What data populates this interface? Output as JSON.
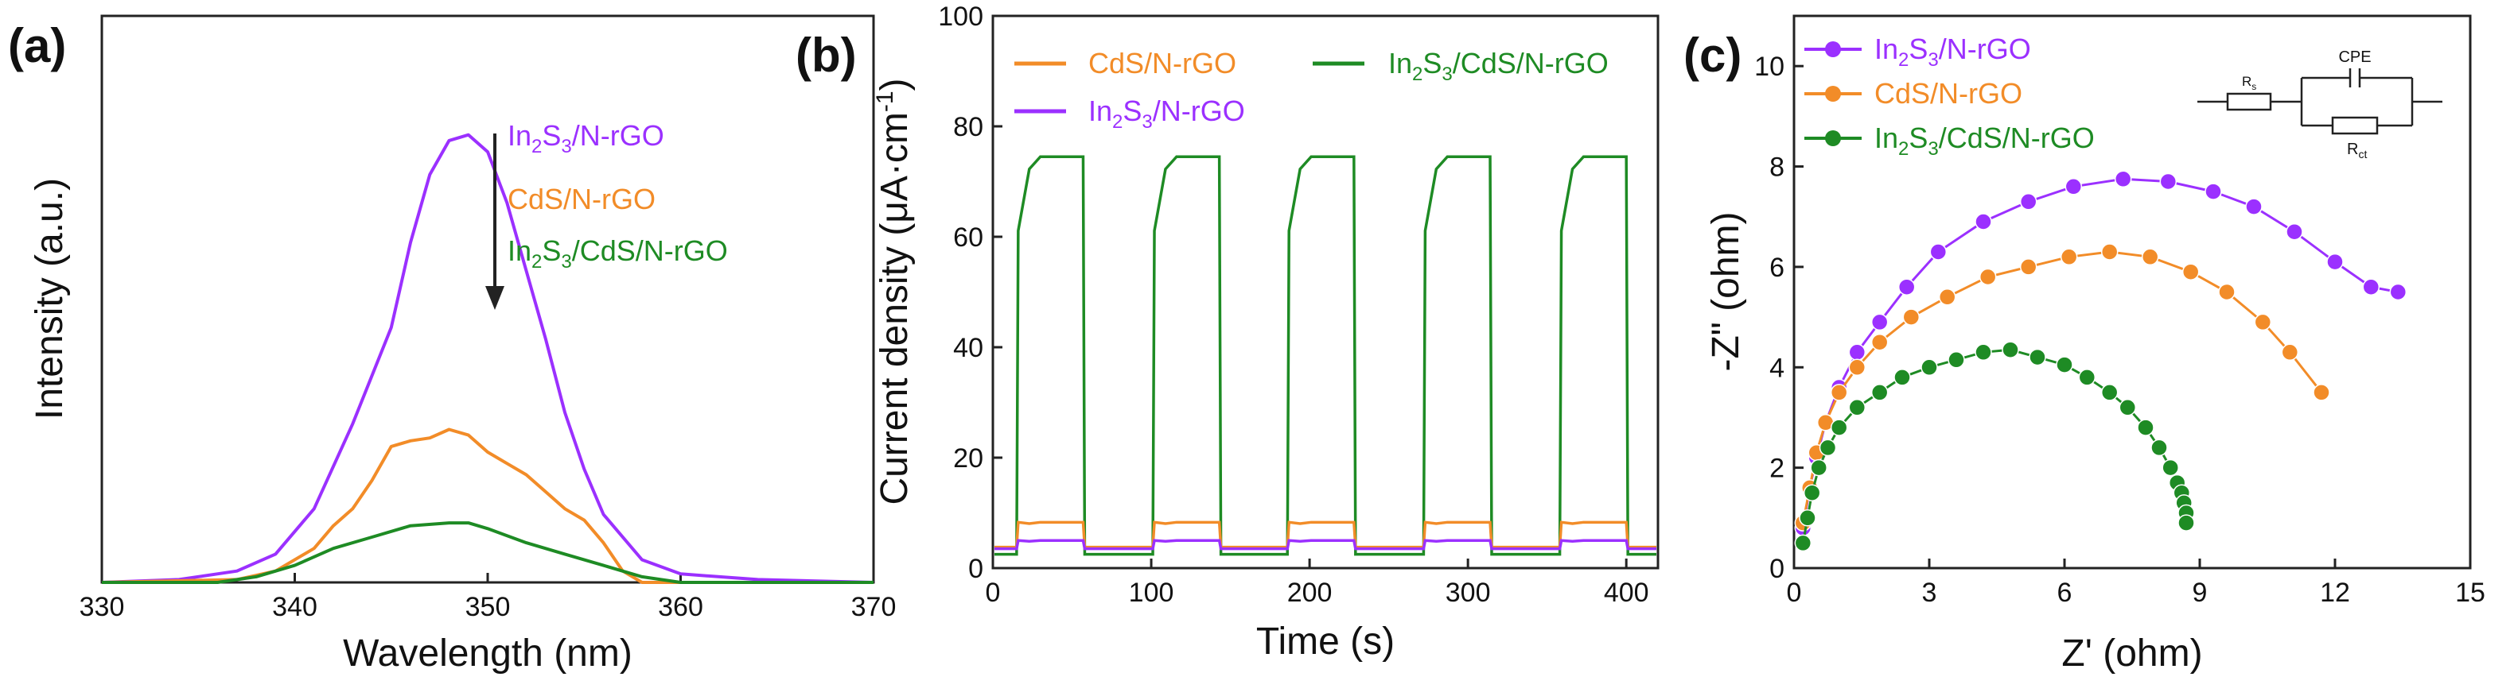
{
  "colors": {
    "purple": "#9b30ff",
    "orange": "#f28c28",
    "green": "#1e8b24",
    "axis": "#222222"
  },
  "chart_data": [
    {
      "id": "a",
      "panel_label": "(a)",
      "type": "line",
      "title": "",
      "xlabel": "Wavelength (nm)",
      "ylabel": "Intensity (a.u.)",
      "xlim": [
        330,
        370
      ],
      "ylim": [
        0,
        100
      ],
      "xticks": [
        "330",
        "340",
        "350",
        "360",
        "370"
      ],
      "yticks": [],
      "legend_position": "top-right, with downward arrow",
      "series": [
        {
          "name": "In2S3/N-rGO",
          "label_parts": [
            "In",
            "2",
            "S",
            "3",
            "/N-rGO"
          ],
          "color": "#9b30ff",
          "x": [
            330,
            334,
            337,
            339,
            341,
            343,
            345,
            346,
            347,
            348,
            349,
            350,
            351,
            352,
            353,
            354,
            355,
            356,
            358,
            360,
            364,
            370
          ],
          "y": [
            0,
            0.5,
            2,
            5,
            13,
            28,
            45,
            60,
            72,
            78,
            79,
            76,
            67,
            55,
            43,
            30,
            20,
            12,
            4,
            1.5,
            0.5,
            0
          ]
        },
        {
          "name": "CdS/N-rGO",
          "label_parts": [
            "CdS/N-rGO"
          ],
          "color": "#f28c28",
          "x": [
            330,
            337,
            339,
            341,
            342,
            343,
            344,
            345,
            346,
            347,
            348,
            349,
            350,
            351,
            352,
            353,
            354,
            355,
            356,
            357,
            358,
            370
          ],
          "y": [
            0,
            0.5,
            2,
            6,
            10,
            13,
            18,
            24,
            25,
            25.5,
            27,
            26,
            23,
            21,
            19,
            16,
            13,
            11,
            7,
            2,
            0,
            0
          ]
        },
        {
          "name": "In2S3/CdS/N-rGO",
          "label_parts": [
            "In",
            "2",
            "S",
            "3",
            "/CdS/N-rGO"
          ],
          "color": "#1e8b24",
          "x": [
            330,
            336,
            338,
            340,
            342,
            344,
            346,
            348,
            349,
            350,
            352,
            354,
            356,
            358,
            360,
            370
          ],
          "y": [
            0,
            0,
            1,
            3,
            6,
            8,
            10,
            10.5,
            10.5,
            9.5,
            7,
            5,
            3,
            1,
            0,
            0
          ]
        }
      ]
    },
    {
      "id": "b",
      "panel_label": "(b)",
      "type": "line",
      "title": "",
      "xlabel": "Time (s)",
      "ylabel_parts": [
        "Current density (μA·cm",
        "-1",
        ")"
      ],
      "xlim": [
        0,
        420
      ],
      "ylim": [
        0,
        100
      ],
      "xticks": [
        "0",
        "100",
        "200",
        "300",
        "400"
      ],
      "yticks": [
        "0",
        "20",
        "40",
        "60",
        "80",
        "100"
      ],
      "on_periods": [
        [
          15,
          58
        ],
        [
          101,
          144
        ],
        [
          186,
          229
        ],
        [
          272,
          315
        ],
        [
          358,
          401
        ]
      ],
      "legend_position": "top",
      "series": [
        {
          "name": "In2S3/N-rGO",
          "label_parts": [
            "In",
            "2",
            "S",
            "3",
            "/N-rGO"
          ],
          "color": "#9b30ff",
          "off_value": 3.5,
          "on_value": 5
        },
        {
          "name": "CdS/N-rGO",
          "label_parts": [
            "CdS/N-rGO"
          ],
          "color": "#f28c28",
          "off_value": 3.8,
          "on_value": 8.3
        },
        {
          "name": "In2S3/CdS/N-rGO",
          "label_parts": [
            "In",
            "2",
            "S",
            "3",
            "/CdS/N-rGO"
          ],
          "color": "#1e8b24",
          "off_value": 2.5,
          "on_value": 74.5
        }
      ]
    },
    {
      "id": "c",
      "panel_label": "(c)",
      "type": "scatter",
      "title": "",
      "xlabel": "Z' (ohm)",
      "ylabel": "-Z\" (ohm)",
      "xlim": [
        0,
        15
      ],
      "ylim": [
        0,
        11
      ],
      "xticks": [
        "0",
        "3",
        "6",
        "9",
        "12",
        "15"
      ],
      "yticks": [
        "0",
        "2",
        "4",
        "6",
        "8",
        "10"
      ],
      "legend_position": "top-left",
      "inset_circuit": {
        "labels": [
          "Rs",
          "CPE",
          "Rct"
        ],
        "rs_parts": [
          "R",
          "s"
        ],
        "cpe": "CPE",
        "rct_parts": [
          "R",
          "ct"
        ]
      },
      "series": [
        {
          "name": "In2S3/N-rGO",
          "label_parts": [
            "In",
            "2",
            "S",
            "3",
            "/N-rGO"
          ],
          "color": "#9b30ff",
          "x": [
            0.2,
            0.35,
            0.5,
            0.7,
            1.0,
            1.4,
            1.9,
            2.5,
            3.2,
            4.2,
            5.2,
            6.2,
            7.3,
            8.3,
            9.3,
            10.2,
            11.1,
            12.0,
            12.8,
            13.4
          ],
          "y": [
            0.8,
            1.6,
            2.2,
            2.9,
            3.6,
            4.3,
            4.9,
            5.6,
            6.3,
            6.9,
            7.3,
            7.6,
            7.75,
            7.7,
            7.5,
            7.2,
            6.7,
            6.1,
            5.6,
            5.5
          ]
        },
        {
          "name": "CdS/N-rGO",
          "label_parts": [
            "CdS/N-rGO"
          ],
          "color": "#f28c28",
          "x": [
            0.2,
            0.35,
            0.5,
            0.7,
            1.0,
            1.4,
            1.9,
            2.6,
            3.4,
            4.3,
            5.2,
            6.1,
            7.0,
            7.9,
            8.8,
            9.6,
            10.4,
            11.0,
            11.7
          ],
          "y": [
            0.9,
            1.6,
            2.3,
            2.9,
            3.5,
            4.0,
            4.5,
            5.0,
            5.4,
            5.8,
            6.0,
            6.2,
            6.3,
            6.2,
            5.9,
            5.5,
            4.9,
            4.3,
            3.5
          ]
        },
        {
          "name": "In2S3/CdS/N-rGO",
          "label_parts": [
            "In",
            "2",
            "S",
            "3",
            "/CdS/N-rGO"
          ],
          "color": "#1e8b24",
          "x": [
            0.2,
            0.3,
            0.4,
            0.55,
            0.75,
            1.0,
            1.4,
            1.9,
            2.4,
            3.0,
            3.6,
            4.2,
            4.8,
            5.4,
            6.0,
            6.5,
            7.0,
            7.4,
            7.8,
            8.1,
            8.35,
            8.5,
            8.6,
            8.65,
            8.7,
            8.7
          ],
          "y": [
            0.5,
            1.0,
            1.5,
            2.0,
            2.4,
            2.8,
            3.2,
            3.5,
            3.8,
            4.0,
            4.15,
            4.3,
            4.35,
            4.2,
            4.05,
            3.8,
            3.5,
            3.2,
            2.8,
            2.4,
            2.0,
            1.7,
            1.5,
            1.3,
            1.1,
            0.9
          ]
        }
      ]
    }
  ]
}
